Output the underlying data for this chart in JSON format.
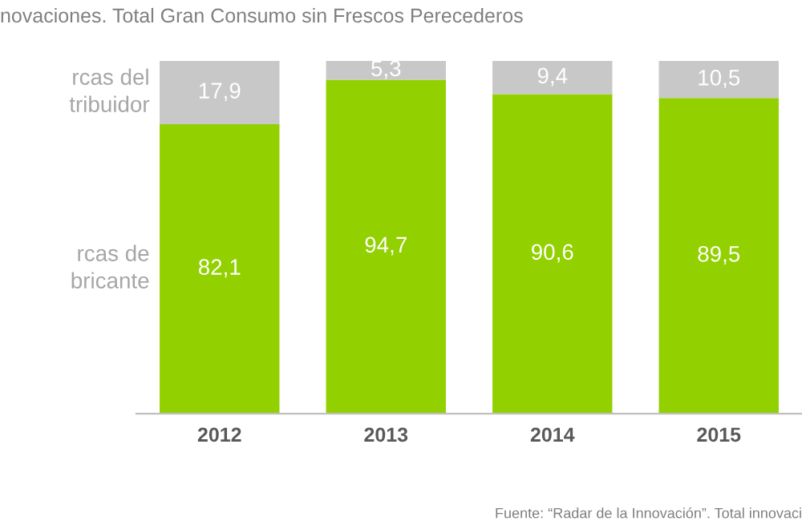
{
  "chart_data": {
    "type": "bar",
    "title": "novaciones. Total Gran Consumo sin Frescos Perecederos",
    "categories": [
      "2012",
      "2013",
      "2014",
      "2015"
    ],
    "stacked": true,
    "data_labels": true,
    "series": [
      {
        "name": "rcas de\nbricante",
        "color": "#92d000",
        "values": [
          82.1,
          94.7,
          90.6,
          89.5
        ],
        "value_labels": [
          "82,1",
          "94,7",
          "90,6",
          "89,5"
        ]
      },
      {
        "name": "rcas del\ntribuidor",
        "color": "#c8c8c8",
        "values": [
          17.9,
          5.3,
          9.4,
          10.5
        ],
        "value_labels": [
          "17,9",
          "5,3",
          "9,4",
          "10,5"
        ]
      }
    ],
    "annotations": [
      "Fuente: “Radar de la Innovación”. Total innovaci"
    ],
    "legend": false,
    "grid": false
  }
}
